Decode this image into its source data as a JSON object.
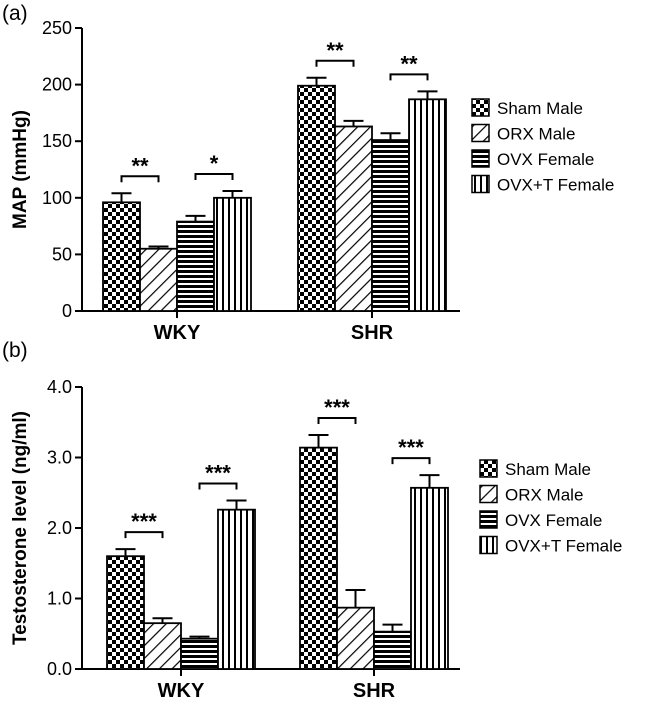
{
  "chart_data": [
    {
      "panel_label": "(a)",
      "type": "bar",
      "categories": [
        "WKY",
        "SHR"
      ],
      "ylabel": "MAP (mmHg)",
      "ylim": [
        0,
        250
      ],
      "yticks": [
        "0",
        "50",
        "100",
        "150",
        "200",
        "250"
      ],
      "legend_position": "right",
      "series": [
        {
          "name": "Sham Male",
          "pattern": "checker",
          "values": [
            96,
            199
          ],
          "errors": [
            8,
            7
          ]
        },
        {
          "name": "ORX Male",
          "pattern": "diagonal",
          "values": [
            55,
            163
          ],
          "errors": [
            2,
            5
          ]
        },
        {
          "name": "OVX Female",
          "pattern": "horizontal",
          "values": [
            79,
            151
          ],
          "errors": [
            5,
            6
          ]
        },
        {
          "name": "OVX+T Female",
          "pattern": "vertical",
          "values": [
            100,
            187
          ],
          "errors": [
            6,
            7
          ]
        }
      ],
      "annotations": [
        {
          "category": 0,
          "from": 0,
          "to": 1,
          "text": "**"
        },
        {
          "category": 0,
          "from": 2,
          "to": 3,
          "text": "*"
        },
        {
          "category": 1,
          "from": 0,
          "to": 1,
          "text": "**"
        },
        {
          "category": 1,
          "from": 2,
          "to": 3,
          "text": "**"
        }
      ]
    },
    {
      "panel_label": "(b)",
      "type": "bar",
      "categories": [
        "WKY",
        "SHR"
      ],
      "ylabel": "Testosterone level  (ng/ml)",
      "ylim": [
        0,
        4
      ],
      "yticks": [
        "0.0",
        "1.0",
        "2.0",
        "3.0",
        "4.0"
      ],
      "legend_position": "right",
      "series": [
        {
          "name": "Sham Male",
          "pattern": "checker",
          "values": [
            1.6,
            3.14
          ],
          "errors": [
            0.1,
            0.18
          ]
        },
        {
          "name": "ORX Male",
          "pattern": "diagonal",
          "values": [
            0.65,
            0.87
          ],
          "errors": [
            0.07,
            0.25
          ]
        },
        {
          "name": "OVX Female",
          "pattern": "horizontal",
          "values": [
            0.43,
            0.53
          ],
          "errors": [
            0.03,
            0.1
          ]
        },
        {
          "name": "OVX+T Female",
          "pattern": "vertical",
          "values": [
            2.26,
            2.57
          ],
          "errors": [
            0.13,
            0.18
          ]
        }
      ],
      "annotations": [
        {
          "category": 0,
          "from": 0,
          "to": 1,
          "text": "***"
        },
        {
          "category": 0,
          "from": 2,
          "to": 3,
          "text": "***"
        },
        {
          "category": 1,
          "from": 0,
          "to": 1,
          "text": "***"
        },
        {
          "category": 1,
          "from": 2,
          "to": 3,
          "text": "***"
        }
      ]
    }
  ]
}
